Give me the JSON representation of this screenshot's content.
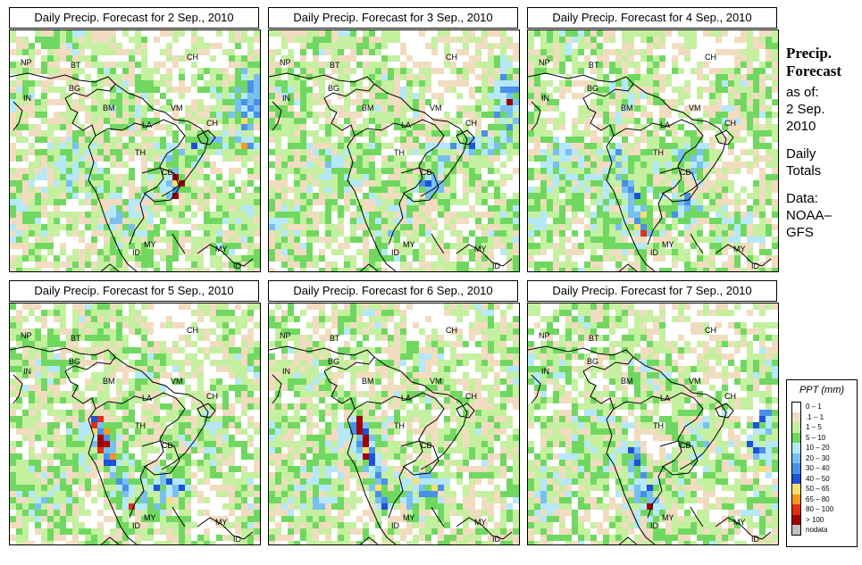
{
  "panels": [
    {
      "title": "Daily Precip. Forecast for  2 Sep., 2010",
      "seed": 11,
      "heavy": "ch-east"
    },
    {
      "title": "Daily Precip. Forecast for  3 Sep., 2010",
      "seed": 23,
      "heavy": "ch-east"
    },
    {
      "title": "Daily Precip. Forecast for  4 Sep., 2010",
      "seed": 37,
      "heavy": "coast"
    },
    {
      "title": "Daily Precip. Forecast for  5 Sep., 2010",
      "seed": 41,
      "heavy": "coast"
    },
    {
      "title": "Daily Precip. Forecast for  6 Sep., 2010",
      "seed": 53,
      "heavy": "coast"
    },
    {
      "title": "Daily Precip. Forecast for  7 Sep., 2010",
      "seed": 67,
      "heavy": "east"
    }
  ],
  "country_labels": [
    "NP",
    "BT",
    "IN",
    "BG",
    "BM",
    "CH",
    "VM",
    "LA",
    "CH",
    "TH",
    "CB",
    "MY",
    "MY",
    "ID",
    "ID"
  ],
  "sidebar": {
    "title_line1": "Precip.",
    "title_line2": "Forecast",
    "asof_label": "as of:",
    "date_line1": "2 Sep.",
    "date_line2": "2010",
    "totals_line1": "Daily",
    "totals_line2": "Totals",
    "data_line1": "Data:",
    "data_line2": "NOAA–",
    "data_line3": "GFS"
  },
  "legend": {
    "title": "PPT (mm)",
    "items": [
      {
        "label": "0 – 1",
        "color": "#ffffff"
      },
      {
        "label": ".1 – 1",
        "color": "#f2dcc0"
      },
      {
        "label": "1 – 5",
        "color": "#c4f0a0"
      },
      {
        "label": "5 – 10",
        "color": "#70d860"
      },
      {
        "label": "10 – 20",
        "color": "#b4e8fa"
      },
      {
        "label": "20 – 30",
        "color": "#78c0f0"
      },
      {
        "label": "30 – 40",
        "color": "#4a90e8"
      },
      {
        "label": "40 – 50",
        "color": "#1e50d8"
      },
      {
        "label": "50 – 65",
        "color": "#f8e070"
      },
      {
        "label": "65 – 80",
        "color": "#f89820"
      },
      {
        "label": "80 – 100",
        "color": "#e03010"
      },
      {
        "label": "> 100",
        "color": "#a00000"
      },
      {
        "label": "nodata",
        "color": "#c0c0c0"
      }
    ]
  }
}
